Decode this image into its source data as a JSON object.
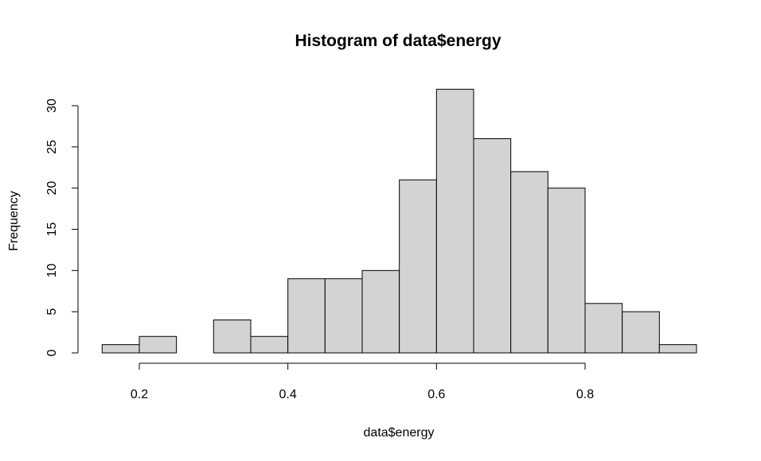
{
  "chart_data": {
    "type": "histogram",
    "title": "Histogram of data$energy",
    "xlabel": "data$energy",
    "ylabel": "Frequency",
    "bin_edges": [
      0.15,
      0.2,
      0.25,
      0.3,
      0.35,
      0.4,
      0.45,
      0.5,
      0.55,
      0.6,
      0.65,
      0.7,
      0.75,
      0.8,
      0.85,
      0.9,
      0.95
    ],
    "values": [
      1,
      2,
      0,
      4,
      2,
      9,
      9,
      10,
      21,
      32,
      26,
      22,
      20,
      6,
      5,
      1
    ],
    "x_ticks": [
      0.2,
      0.4,
      0.6,
      0.8
    ],
    "x_tick_labels": [
      "0.2",
      "0.4",
      "0.6",
      "0.8"
    ],
    "y_ticks": [
      0,
      5,
      10,
      15,
      20,
      25,
      30
    ],
    "y_tick_labels": [
      "0",
      "5",
      "10",
      "15",
      "20",
      "25",
      "30"
    ],
    "xlim": [
      0.15,
      0.95
    ],
    "ylim": [
      0,
      32
    ],
    "grid": false,
    "colors": {
      "bar_fill": "#d3d3d3",
      "bar_stroke": "#000000"
    }
  }
}
